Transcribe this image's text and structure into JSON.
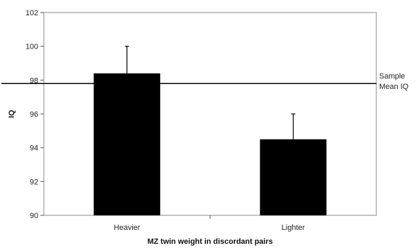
{
  "chart_data": {
    "type": "bar",
    "title": "",
    "xlabel": "MZ twin weight in discordant pairs",
    "ylabel": "IQ",
    "categories": [
      "Heavier",
      "Lighter"
    ],
    "values": [
      98.4,
      94.5
    ],
    "error_upper": [
      100.0,
      96.0
    ],
    "ylim": [
      90,
      102
    ],
    "yticks": [
      90,
      92,
      94,
      96,
      98,
      100,
      102
    ],
    "reference_line": {
      "value": 97.8,
      "label_lines": [
        "Sample",
        "Mean IQ"
      ]
    },
    "bar_color": "#000000",
    "grid": false,
    "legend": "none"
  }
}
